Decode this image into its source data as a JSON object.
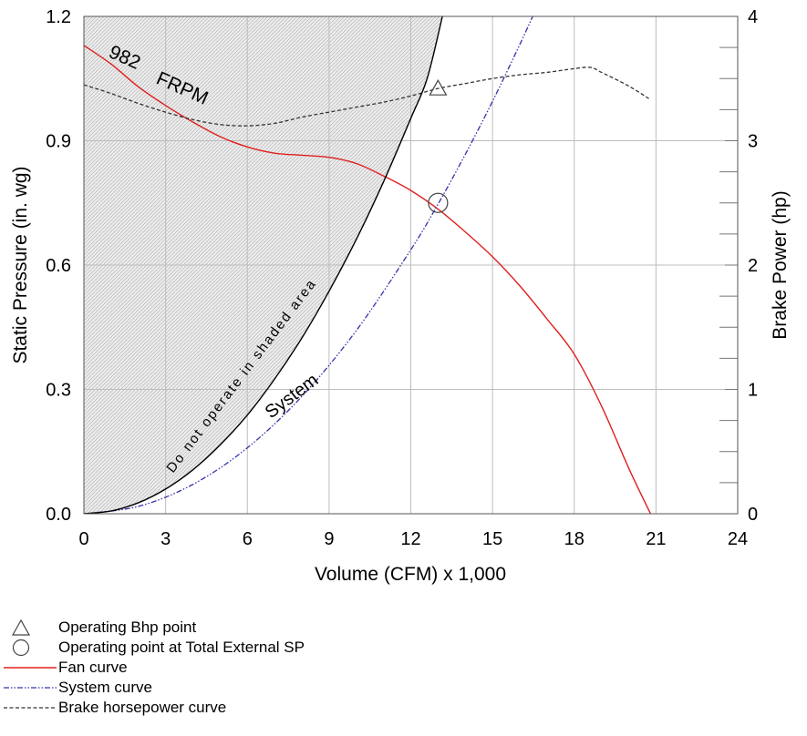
{
  "chart_data": {
    "type": "line",
    "xlabel": "Volume (CFM) x 1,000",
    "ylabel": "Static Pressure (in. wg)",
    "y2label": "Brake Power (hp)",
    "xlim": [
      0,
      24
    ],
    "ylim": [
      0,
      1.2
    ],
    "y2lim": [
      0,
      4
    ],
    "xticks": [
      "0",
      "3",
      "6",
      "9",
      "12",
      "15",
      "18",
      "21",
      "24"
    ],
    "yticks": [
      "0.0",
      "0.3",
      "0.6",
      "0.9",
      "1.2"
    ],
    "y2ticks": [
      "0",
      "1",
      "2",
      "3",
      "4"
    ],
    "grid": true,
    "annotations": {
      "rpm_value": "982",
      "rpm_unit": "FRPM",
      "shaded_note": "Do not operate in shaded area",
      "system_label": "System"
    },
    "series": [
      {
        "name": "Fan curve",
        "axis": "left",
        "color": "#e0201f",
        "style": "solid",
        "x": [
          0,
          1,
          2,
          3,
          4,
          5,
          6,
          7,
          8,
          9,
          10,
          11,
          12,
          13,
          14,
          15,
          16,
          17,
          18,
          19,
          20,
          20.8
        ],
        "y": [
          1.13,
          1.085,
          1.03,
          0.985,
          0.945,
          0.91,
          0.885,
          0.87,
          0.865,
          0.86,
          0.845,
          0.815,
          0.78,
          0.735,
          0.68,
          0.62,
          0.55,
          0.47,
          0.385,
          0.26,
          0.11,
          0.0
        ]
      },
      {
        "name": "System curve",
        "axis": "left",
        "color": "#3333aa",
        "style": "dash-dot",
        "x": [
          0,
          2,
          4,
          6,
          8,
          10,
          12,
          13,
          14,
          15,
          16,
          16.7
        ],
        "y": [
          0,
          0.0177,
          0.0708,
          0.159,
          0.283,
          0.442,
          0.637,
          0.747,
          0.867,
          0.995,
          1.132,
          1.233
        ]
      },
      {
        "name": "Brake horsepower curve",
        "axis": "right",
        "color": "#333333",
        "style": "dashed",
        "x": [
          0,
          1,
          2,
          3,
          4,
          5,
          6,
          7,
          8,
          9,
          10,
          11,
          12,
          13,
          14,
          15,
          16,
          17,
          18,
          18.6,
          19,
          20,
          20.8
        ],
        "y": [
          3.45,
          3.38,
          3.3,
          3.23,
          3.17,
          3.13,
          3.12,
          3.14,
          3.19,
          3.23,
          3.27,
          3.31,
          3.36,
          3.42,
          3.46,
          3.5,
          3.53,
          3.55,
          3.58,
          3.59,
          3.55,
          3.44,
          3.33
        ]
      },
      {
        "name": "Do not operate boundary",
        "axis": "left",
        "color": "#000000",
        "style": "solid",
        "x": [
          0,
          1,
          2,
          3,
          4,
          5,
          6,
          7,
          8,
          9,
          10,
          11,
          12,
          12.6,
          13.16
        ],
        "y": [
          0,
          0.0066,
          0.0265,
          0.0596,
          0.106,
          0.166,
          0.238,
          0.325,
          0.424,
          0.537,
          0.662,
          0.801,
          0.954,
          1.05,
          1.2
        ]
      }
    ],
    "markers": [
      {
        "name": "Operating Bhp point",
        "shape": "triangle",
        "x": 13,
        "y": 3.42,
        "axis": "right"
      },
      {
        "name": "Operating point at Total External SP",
        "shape": "circle",
        "x": 13,
        "y": 0.75,
        "axis": "left"
      }
    ]
  },
  "legend": [
    {
      "symbol": "triangle",
      "label": "Operating Bhp point"
    },
    {
      "symbol": "circle",
      "label": "Operating point at Total External SP"
    },
    {
      "symbol": "solid-red",
      "label": "Fan curve"
    },
    {
      "symbol": "dashdot-blue",
      "label": "System curve"
    },
    {
      "symbol": "dashed-black",
      "label": "Brake horsepower curve"
    }
  ]
}
